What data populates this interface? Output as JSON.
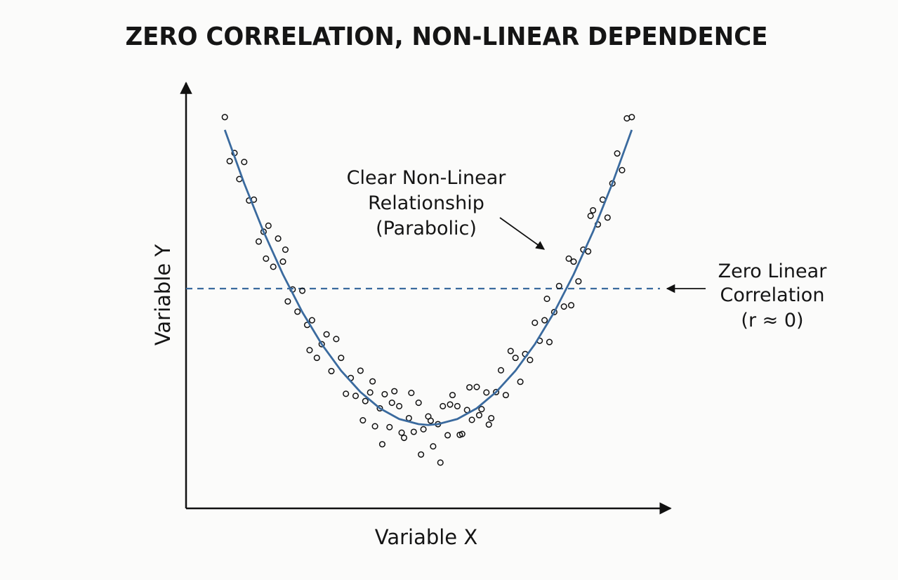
{
  "chart_data": {
    "type": "scatter",
    "title": "ZERO CORRELATION, NON-LINEAR DEPENDENCE",
    "x_label": "Variable X",
    "y_label": "Variable Y",
    "annotations": [
      [
        "Clear Non-Linear",
        "Relationship",
        "(Parabolic)"
      ],
      [
        "Zero Linear",
        "Correlation",
        "(r ≈ 0)"
      ]
    ],
    "xlim": [
      0,
      100
    ],
    "ylim": [
      0,
      100
    ],
    "point_color": "#111111",
    "scatter": {
      "x": [
        8,
        9,
        10,
        11,
        12,
        13,
        14,
        15,
        16,
        17,
        18,
        19,
        20,
        21,
        22,
        23,
        24,
        25,
        26,
        27,
        28,
        29,
        30,
        31,
        32,
        33,
        34,
        35,
        36,
        37,
        38,
        39,
        40,
        41,
        42,
        43,
        44,
        45,
        46,
        47,
        48,
        49,
        50,
        51,
        52,
        53,
        54,
        55,
        56,
        57,
        58,
        59,
        60,
        61,
        62,
        63,
        64,
        65,
        66,
        67,
        68,
        69,
        70,
        71,
        72,
        73,
        74,
        75,
        76,
        77,
        78,
        79,
        80,
        81,
        82,
        83,
        84,
        85,
        86,
        87,
        88,
        89,
        90,
        91,
        92,
        36.5,
        38.5,
        40.5,
        42.5,
        44.5,
        46.5,
        48.5,
        50.5,
        52.5,
        54.5,
        56.5,
        58.5,
        60.5,
        62.5,
        20.5,
        79.5,
        25.5,
        74.5,
        16.5,
        83.5
      ],
      "values": [
        91.5,
        81.2,
        83.1,
        77.0,
        81.0,
        72.0,
        72.2,
        62.4,
        64.7,
        66.1,
        56.5,
        63.1,
        57.7,
        48.4,
        51.2,
        46.0,
        50.9,
        42.9,
        44.0,
        35.2,
        38.4,
        40.7,
        32.1,
        39.6,
        35.2,
        26.8,
        30.5,
        26.3,
        32.2,
        25.1,
        27.1,
        19.2,
        23.4,
        26.7,
        19.0,
        27.4,
        23.9,
        16.5,
        21.1,
        17.9,
        24.7,
        18.5,
        21.5,
        14.5,
        19.7,
        23.9,
        17.1,
        26.5,
        23.9,
        17.4,
        23.0,
        20.7,
        28.4,
        23.2,
        27.1,
        21.1,
        27.2,
        32.3,
        26.5,
        36.8,
        35.2,
        29.6,
        36.1,
        34.7,
        43.4,
        39.2,
        44.0,
        38.9,
        45.9,
        52.0,
        47.2,
        58.4,
        57.7,
        53.1,
        60.5,
        60.1,
        69.7,
        66.4,
        72.2,
        68.0,
        76.0,
        83.0,
        79.1,
        91.2,
        91.5,
        20.6,
        29.7,
        15.0,
        24.7,
        17.7,
        27.0,
        12.6,
        20.5,
        10.7,
        24.3,
        17.2,
        28.3,
        21.8,
        19.6,
        60.5,
        47.5,
        37.0,
        49.0,
        58.4,
        68.4
      ]
    },
    "curve": {
      "color": "#3a6a9e",
      "x": [
        8,
        12,
        16,
        20,
        24,
        28,
        32,
        36,
        40,
        44,
        48,
        50,
        52,
        56,
        60,
        64,
        68,
        72,
        76,
        80,
        84,
        88,
        92
      ],
      "values": [
        88.5,
        76.0,
        64.7,
        54.7,
        45.9,
        38.4,
        32.2,
        27.2,
        23.4,
        20.9,
        19.7,
        19.5,
        19.7,
        20.9,
        23.4,
        27.2,
        32.2,
        38.4,
        45.9,
        54.7,
        64.7,
        76.0,
        88.5
      ]
    },
    "reference_line": {
      "value": 51.4,
      "color": "#3a6a9e"
    }
  }
}
